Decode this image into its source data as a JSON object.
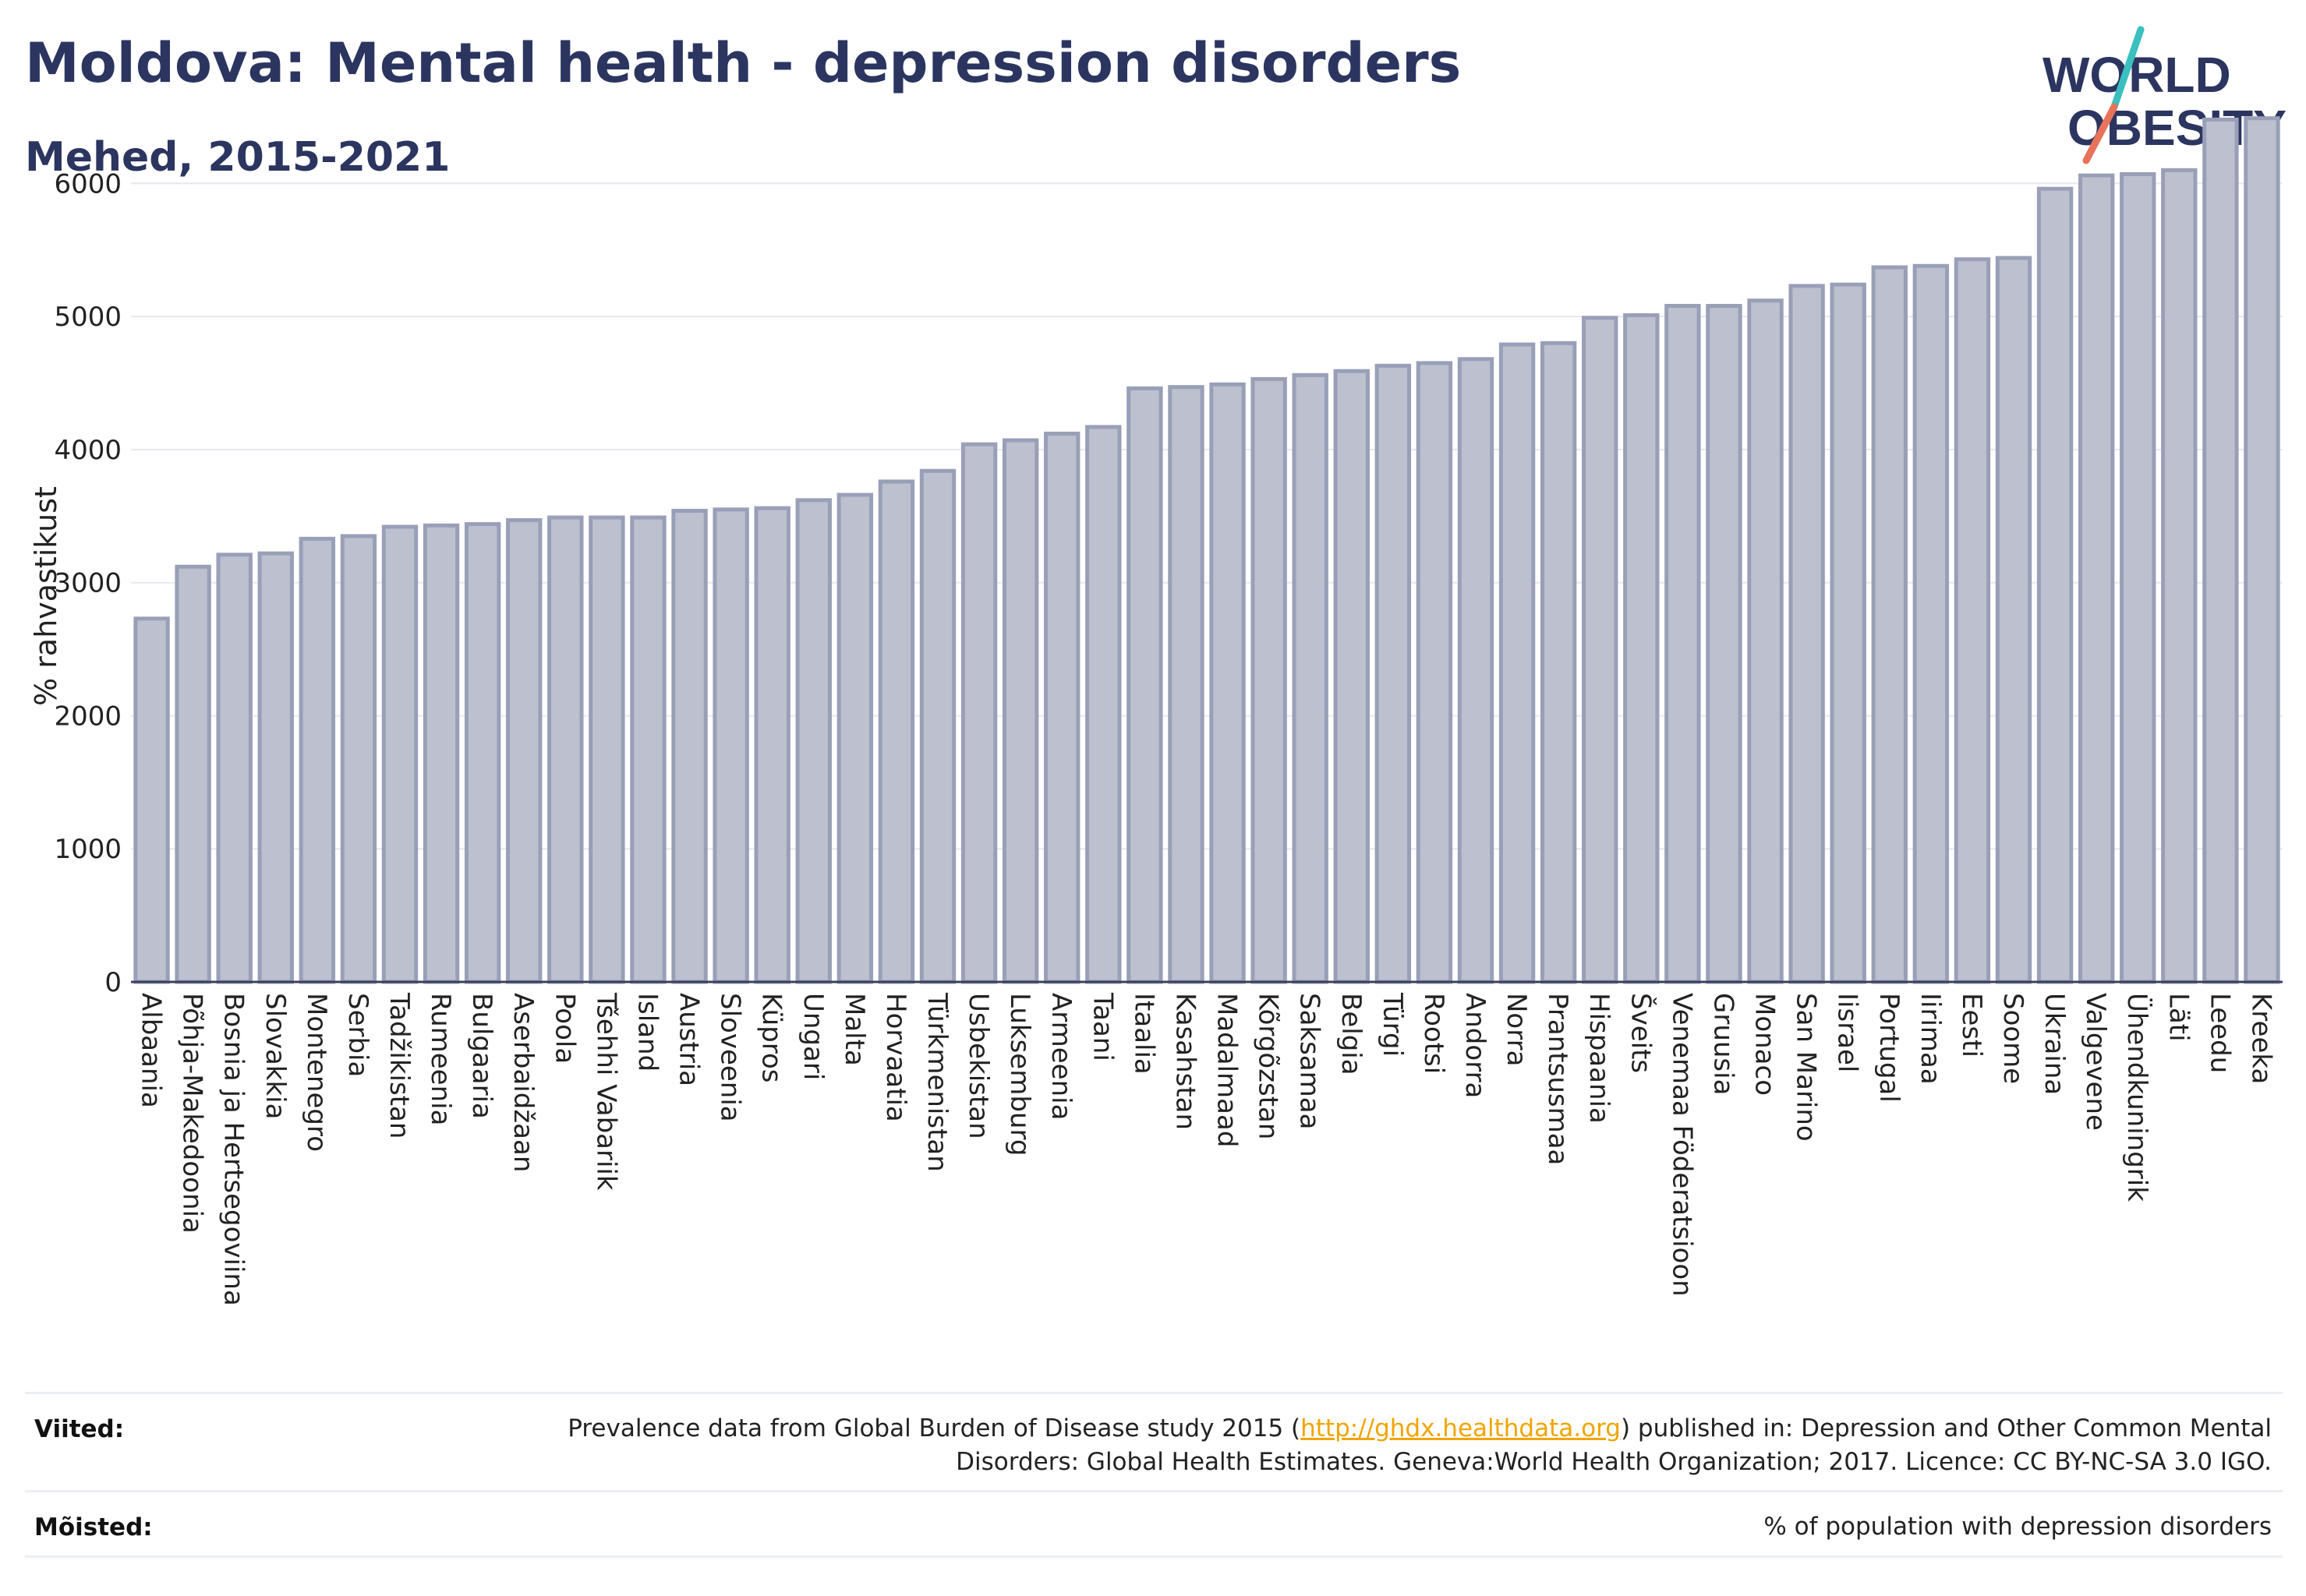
{
  "header": {
    "title": "Moldova: Mental health - depression disorders",
    "subtitle": "Mehed, 2015-2021"
  },
  "logo": {
    "line1": "WORLD",
    "line2": "OBESITY",
    "accent_teal": "#3bbfbf",
    "accent_red": "#e8735a"
  },
  "colors": {
    "bar_fill": "#bcc0cf",
    "bar_stroke": "#9a9fb8",
    "text": "#2b3560",
    "grid": "#e6e8ee",
    "axis": "#3a3f5c"
  },
  "chart_data": {
    "type": "bar",
    "ylabel": "% rahvastikust",
    "ylim": [
      0,
      6500
    ],
    "yticks": [
      0,
      1000,
      2000,
      3000,
      4000,
      5000,
      6000
    ],
    "grid": true,
    "categories": [
      "Albaania",
      "Põhja-Makedoonia",
      "Bosnia ja Hertsegoviina",
      "Slovakkia",
      "Montenegro",
      "Serbia",
      "Tadžikistan",
      "Rumeenia",
      "Bulgaaria",
      "Aserbaidžaan",
      "Poola",
      "Tšehhi Vabariik",
      "Island",
      "Austria",
      "Sloveenia",
      "Küpros",
      "Ungari",
      "Malta",
      "Horvaatia",
      "Türkmenistan",
      "Usbekistan",
      "Luksemburg",
      "Armeenia",
      "Taani",
      "Itaalia",
      "Kasahstan",
      "Madalmaad",
      "Kõrgõzstan",
      "Saksamaa",
      "Belgia",
      "Türgi",
      "Rootsi",
      "Andorra",
      "Norra",
      "Prantsusmaa",
      "Hispaania",
      "Šveits",
      "Venemaa Föderatsioon",
      "Gruusia",
      "Monaco",
      "San Marino",
      "Iisrael",
      "Portugal",
      "Iirimaa",
      "Eesti",
      "Soome",
      "Ukraina",
      "Valgevene",
      "Ühendkuningrik",
      "Läti",
      "Leedu",
      "Kreeka"
    ],
    "values": [
      2730,
      3120,
      3210,
      3220,
      3330,
      3350,
      3420,
      3430,
      3440,
      3470,
      3490,
      3490,
      3490,
      3540,
      3550,
      3560,
      3620,
      3660,
      3760,
      3840,
      4040,
      4070,
      4120,
      4170,
      4460,
      4470,
      4490,
      4530,
      4560,
      4590,
      4630,
      4650,
      4680,
      4790,
      4800,
      4990,
      5010,
      5080,
      5080,
      5120,
      5230,
      5240,
      5370,
      5380,
      5430,
      5440,
      5960,
      6060,
      6070,
      6100,
      6480,
      6490
    ]
  },
  "footer": {
    "sources_label": "Viited:",
    "sources_pre": "Prevalence data from Global Burden of Disease study 2015 (",
    "sources_link": "http://ghdx.healthdata.org",
    "sources_post": ") published in: Depression and Other Common Mental Disorders: Global Health Estimates. Geneva:World Health Organization; 2017. Licence: CC BY-NC-SA 3.0 IGO.",
    "definitions_label": "Mõisted:",
    "definitions_text": "% of population with depression disorders"
  }
}
